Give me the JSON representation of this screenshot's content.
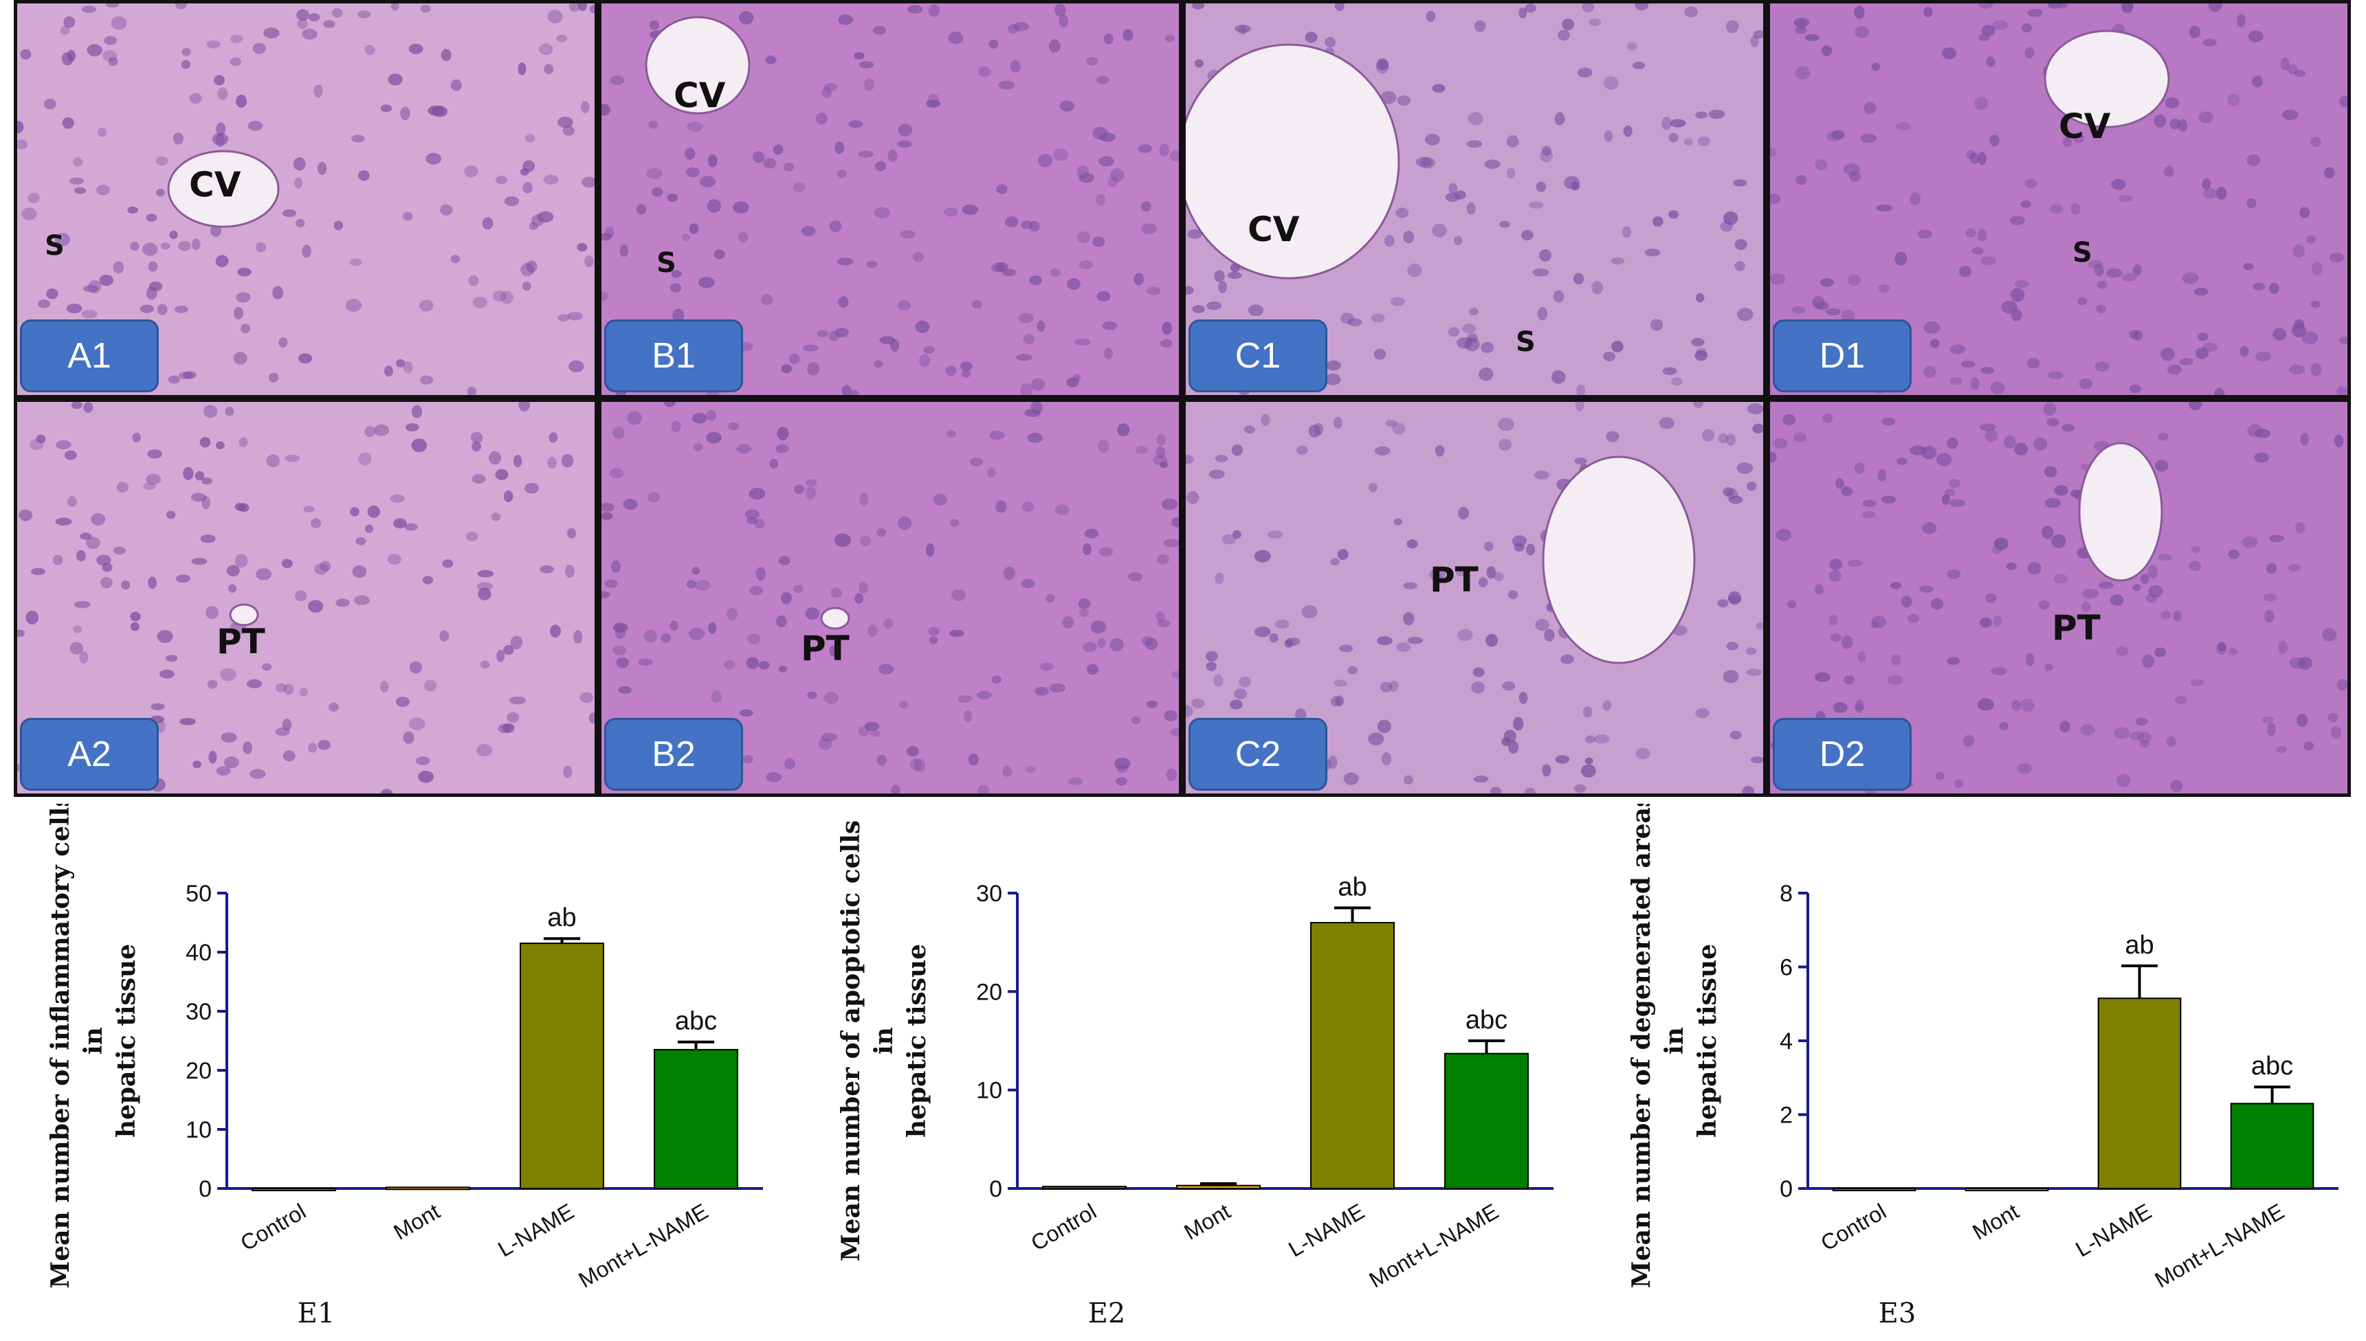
{
  "panels": [
    {
      "id": "A1",
      "label": "A1",
      "annotations": [
        "CV",
        "S"
      ]
    },
    {
      "id": "B1",
      "label": "B1",
      "annotations": [
        "CV",
        "S"
      ]
    },
    {
      "id": "C1",
      "label": "C1",
      "annotations": [
        "CV",
        "S"
      ]
    },
    {
      "id": "D1",
      "label": "D1",
      "annotations": [
        "CV",
        "S"
      ]
    },
    {
      "id": "A2",
      "label": "A2",
      "annotations": [
        "PT"
      ]
    },
    {
      "id": "B2",
      "label": "B2",
      "annotations": [
        "PT"
      ]
    },
    {
      "id": "C2",
      "label": "C2",
      "annotations": [
        "PT"
      ]
    },
    {
      "id": "D2",
      "label": "D2",
      "annotations": [
        "PT"
      ]
    }
  ],
  "colors": {
    "tissue_base": "#c98fc9",
    "tissue_dark": "#7a4fa0",
    "control": "#e040a0",
    "mont": "#f5a623",
    "lname": "#808000",
    "mont_lname": "#008000",
    "axis": "#1a1a8c",
    "tag": "#4472c4"
  },
  "chart_data": [
    {
      "type": "bar",
      "panel_label": "E1",
      "ylabel_lines": [
        "Mean number of inflammatory cells",
        "in",
        "hepatic tissue"
      ],
      "categories": [
        "Control",
        "Mont",
        "L-NAME",
        "Mont+L-NAME"
      ],
      "values": [
        0,
        0.2,
        41.5,
        23.5
      ],
      "errors": [
        0,
        0,
        0.8,
        1.3
      ],
      "sig_labels": [
        "",
        "",
        "ab",
        "abc"
      ],
      "ylim": [
        0,
        50
      ],
      "yticks": [
        0,
        10,
        20,
        30,
        40,
        50
      ]
    },
    {
      "type": "bar",
      "panel_label": "E2",
      "ylabel_lines": [
        "Mean  number of apoptotic cells",
        "in",
        "hepatic tissue"
      ],
      "categories": [
        "Control",
        "Mont",
        "L-NAME",
        "Mont+L-NAME"
      ],
      "values": [
        0.2,
        0.3,
        27,
        13.7
      ],
      "errors": [
        0,
        0.2,
        1.5,
        1.3
      ],
      "sig_labels": [
        "",
        "",
        "ab",
        "abc"
      ],
      "ylim": [
        0,
        30
      ],
      "yticks": [
        0,
        10,
        20,
        30
      ]
    },
    {
      "type": "bar",
      "panel_label": "E3",
      "ylabel_lines": [
        "Mean number of degenerated areas",
        "in",
        "hepatic tissue"
      ],
      "categories": [
        "Control",
        "Mont",
        "L-NAME",
        "Mont+L-NAME"
      ],
      "values": [
        0,
        0,
        5.15,
        2.3
      ],
      "errors": [
        0,
        0,
        0.88,
        0.45
      ],
      "sig_labels": [
        "",
        "",
        "ab",
        "abc"
      ],
      "ylim": [
        0,
        8
      ],
      "yticks": [
        0,
        2,
        4,
        6,
        8
      ]
    }
  ]
}
